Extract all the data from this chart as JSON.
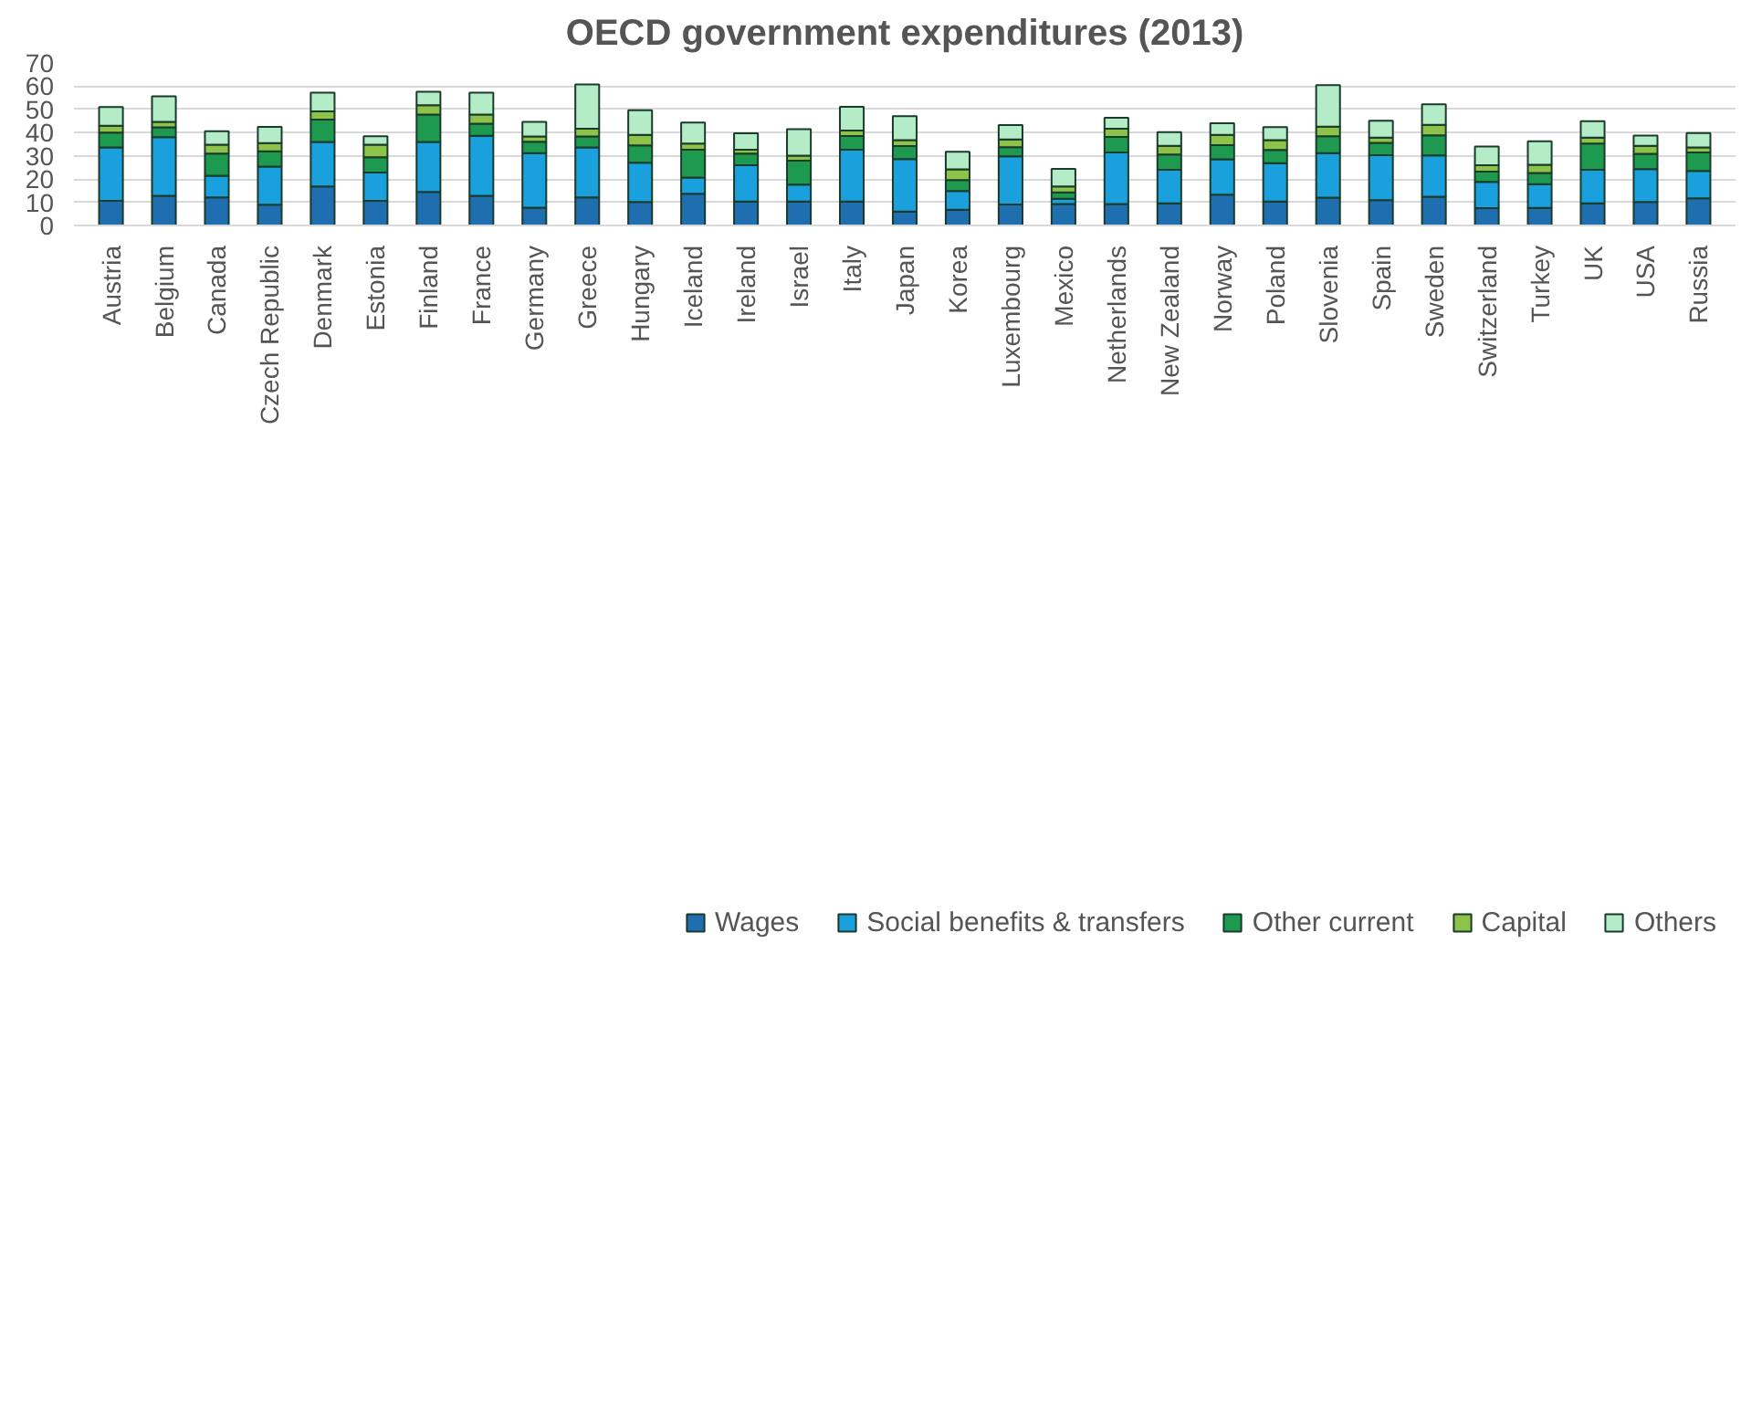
{
  "chart_data": {
    "type": "bar",
    "title": "OECD government expenditures (2013)",
    "stacked": true,
    "grid": "y",
    "legend": "bottom",
    "categories": [
      "Austria",
      "Belgium",
      "Canada",
      "Czech Republic",
      "Denmark",
      "Estonia",
      "Finland",
      "France",
      "Germany",
      "Greece",
      "Hungary",
      "Iceland",
      "Ireland",
      "Israel",
      "Italy",
      "Japan",
      "Korea",
      "Luxembourg",
      "Mexico",
      "Netherlands",
      "New Zealand",
      "Norway",
      "Poland",
      "Slovenia",
      "Spain",
      "Sweden",
      "Switzerland",
      "Turkey",
      "UK",
      "USA",
      "Russia"
    ],
    "ylim": [
      0,
      70
    ],
    "yticks": [
      0,
      10,
      20,
      30,
      40,
      50,
      60,
      70
    ],
    "series": [
      {
        "name": "Wages",
        "color": "#1f6fb0",
        "values": [
          10.6,
          12.8,
          12.1,
          8.9,
          16.8,
          10.6,
          14.5,
          12.8,
          7.7,
          12.1,
          10.1,
          13.7,
          10.3,
          10.3,
          10.3,
          6.0,
          6.8,
          9.0,
          9.2,
          9.2,
          9.5,
          13.3,
          10.3,
          12.0,
          10.9,
          12.4,
          7.5,
          7.6,
          9.5,
          10.1,
          11.7
        ]
      },
      {
        "name": "Social benefits & transfers",
        "color": "#1aa0dc",
        "values": [
          23.0,
          25.2,
          9.3,
          16.5,
          19.2,
          12.2,
          21.5,
          25.8,
          23.5,
          21.5,
          16.9,
          6.9,
          15.7,
          7.3,
          22.3,
          22.6,
          8.0,
          20.8,
          2.3,
          22.3,
          14.5,
          15.2,
          16.5,
          19.2,
          19.4,
          17.8,
          11.3,
          10.2,
          14.5,
          14.2,
          11.8
        ]
      },
      {
        "name": "Other current",
        "color": "#1e9a50",
        "values": [
          6.4,
          4.3,
          9.6,
          6.6,
          9.6,
          6.6,
          11.8,
          5.2,
          4.9,
          4.7,
          7.5,
          12.0,
          5.0,
          10.3,
          5.9,
          5.6,
          4.8,
          3.9,
          2.8,
          6.6,
          6.6,
          6.1,
          5.7,
          7.2,
          5.3,
          8.6,
          4.4,
          4.8,
          11.3,
          6.6,
          8.0
        ]
      },
      {
        "name": "Capital",
        "color": "#8dc34a",
        "values": [
          3.0,
          2.3,
          3.8,
          3.5,
          3.6,
          5.4,
          4.0,
          4.0,
          2.2,
          3.4,
          4.5,
          2.7,
          1.6,
          2.2,
          2.4,
          2.6,
          4.6,
          3.4,
          2.5,
          3.6,
          3.7,
          4.4,
          4.3,
          4.2,
          2.3,
          4.6,
          2.8,
          3.6,
          2.6,
          3.4,
          2.1
        ]
      },
      {
        "name": "Others",
        "color": "#b5ecc8",
        "values": [
          8.0,
          11.0,
          5.8,
          7.0,
          8.0,
          3.6,
          5.8,
          9.4,
          6.3,
          19.1,
          10.6,
          9.0,
          7.1,
          11.4,
          10.2,
          10.3,
          7.6,
          6.2,
          7.6,
          4.7,
          5.9,
          5.0,
          5.6,
          17.9,
          7.2,
          8.8,
          8.0,
          10.1,
          7.0,
          4.4,
          6.2
        ]
      }
    ]
  }
}
